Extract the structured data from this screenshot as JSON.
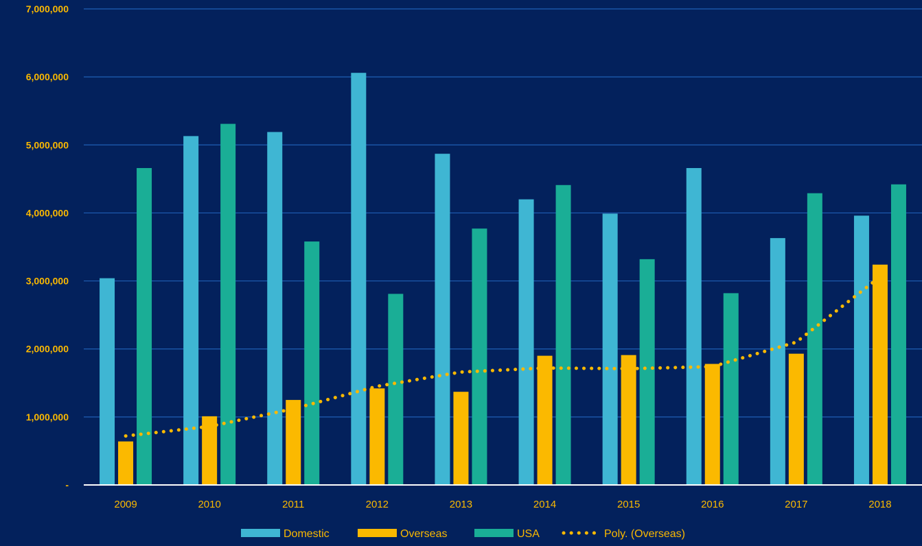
{
  "chart_data": {
    "type": "bar",
    "categories": [
      "2009",
      "2010",
      "2011",
      "2012",
      "2013",
      "2014",
      "2015",
      "2016",
      "2017",
      "2018"
    ],
    "series": [
      {
        "name": "Domestic",
        "color": "#3fb6d3",
        "values": [
          3040000,
          5130000,
          5190000,
          6060000,
          4870000,
          4200000,
          3990000,
          4660000,
          3630000,
          3960000
        ]
      },
      {
        "name": "Overseas",
        "color": "#fbb900",
        "values": [
          640000,
          1010000,
          1250000,
          1420000,
          1370000,
          1900000,
          1910000,
          1780000,
          1930000,
          3240000
        ]
      },
      {
        "name": "USA",
        "color": "#1aae96",
        "values": [
          4660000,
          5310000,
          3580000,
          2810000,
          3770000,
          4410000,
          3320000,
          2820000,
          4290000,
          4420000
        ]
      }
    ],
    "trendline": {
      "name": "Poly. (Overseas)",
      "color": "#fbb900",
      "style": "dotted",
      "values": [
        720000,
        860000,
        1120000,
        1450000,
        1660000,
        1720000,
        1710000,
        1740000,
        2100000,
        3060000
      ]
    },
    "y_tick_labels": [
      "-",
      "1,000,000",
      "2,000,000",
      "3,000,000",
      "4,000,000",
      "5,000,000",
      "6,000,000",
      "7,000,000"
    ],
    "ylim": [
      0,
      7000000
    ],
    "grid": true,
    "legend_position": "bottom",
    "title": "",
    "xlabel": "",
    "ylabel": "",
    "colors": {
      "background": "#03215c",
      "gridline": "#1f5fb5",
      "axis": "#ffffff",
      "tick_label": "#fbb900",
      "legend_text": "#fbb900"
    }
  }
}
